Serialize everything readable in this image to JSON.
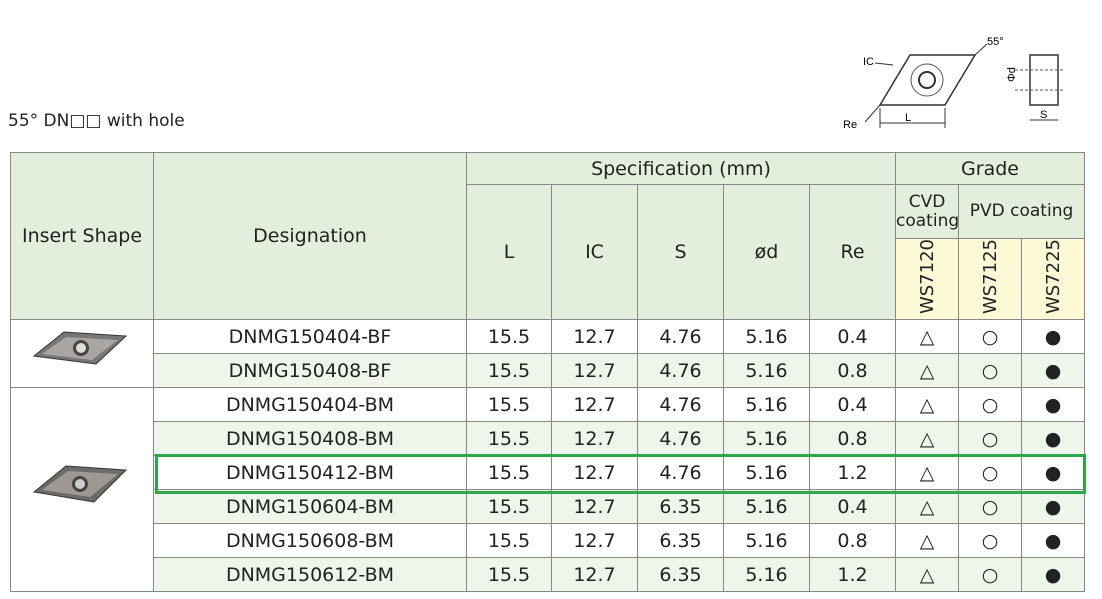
{
  "title": "55° DN□□ with hole",
  "diagram": {
    "angle": "55°",
    "ic": "IC",
    "re": "Re",
    "l": "L",
    "d": "Φd",
    "s": "S"
  },
  "table": {
    "headers": {
      "insert_shape": "Insert Shape",
      "designation": "Designation",
      "specification": "Specification (mm)",
      "grade": "Grade",
      "spec_columns": [
        "L",
        "IC",
        "S",
        "ød",
        "Re"
      ],
      "cvd": "CVD coating",
      "pvd": "PVD coating",
      "grades": [
        "WS7120",
        "WS7125",
        "WS7225"
      ]
    },
    "highlight_row": 4,
    "rows": [
      [
        "DNMG150404-BF",
        15.5,
        12.7,
        4.76,
        5.16,
        0.4,
        "△",
        "○",
        "●"
      ],
      [
        "DNMG150408-BF",
        15.5,
        12.7,
        4.76,
        5.16,
        0.8,
        "△",
        "○",
        "●"
      ],
      [
        "DNMG150404-BM",
        15.5,
        12.7,
        4.76,
        5.16,
        0.4,
        "△",
        "○",
        "●"
      ],
      [
        "DNMG150408-BM",
        15.5,
        12.7,
        4.76,
        5.16,
        0.8,
        "△",
        "○",
        "●"
      ],
      [
        "DNMG150412-BM",
        15.5,
        12.7,
        4.76,
        5.16,
        1.2,
        "△",
        "○",
        "●"
      ],
      [
        "DNMG150604-BM",
        15.5,
        12.7,
        6.35,
        5.16,
        0.4,
        "△",
        "○",
        "●"
      ],
      [
        "DNMG150608-BM",
        15.5,
        12.7,
        6.35,
        5.16,
        0.8,
        "△",
        "○",
        "●"
      ],
      [
        "DNMG150612-BM",
        15.5,
        12.7,
        6.35,
        5.16,
        1.2,
        "△",
        "○",
        "●"
      ]
    ]
  }
}
